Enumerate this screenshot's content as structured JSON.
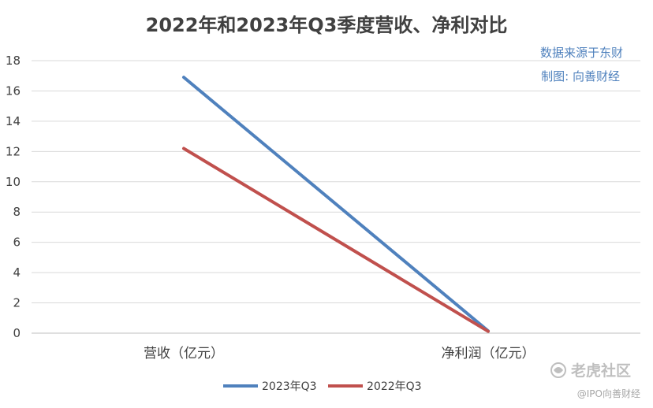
{
  "chart_data": {
    "type": "line",
    "title": "2022年和2023年Q3季度营收、净利对比",
    "categories": [
      "营收（亿元）",
      "净利润（亿元）"
    ],
    "series": [
      {
        "name": "2023年Q3",
        "values": [
          16.9,
          0.15
        ],
        "color": "#4f81bd"
      },
      {
        "name": "2022年Q3",
        "values": [
          12.2,
          0.12
        ],
        "color": "#c0504d"
      }
    ],
    "ylim": [
      0,
      18
    ],
    "yticks": [
      0,
      2,
      4,
      6,
      8,
      10,
      12,
      14,
      16,
      18
    ],
    "grid": true,
    "legend": "bottom",
    "xlabel": "",
    "ylabel": ""
  },
  "annotations": {
    "source": "数据来源于东财",
    "maker": "制图: 向善财经",
    "color": "#4f81bd"
  },
  "watermark": {
    "main": "老虎社区",
    "sub": "@IPO向善财经"
  }
}
